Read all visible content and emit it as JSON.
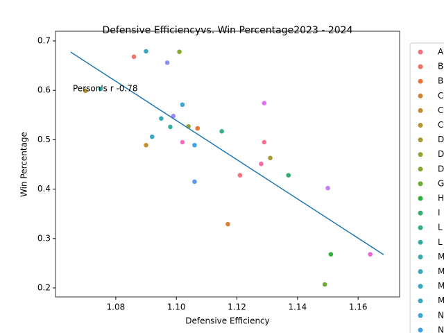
{
  "chart_data": {
    "type": "scatter",
    "title": "Defensive Efficiencyvs. Win Percentage2023 - 2024",
    "x_label": "Defensive Efficiency",
    "y_label": "Win Percentage",
    "annotation": "Person's r -0.78",
    "xlim": [
      1.0601,
      1.1737
    ],
    "ylim": [
      0.1817,
      0.7197
    ],
    "xticks": [
      1.08,
      {
        "value": 1.1,
        "label": "1.10"
      },
      1.12,
      1.14,
      1.16
    ],
    "yticks": [
      0.2,
      0.3,
      0.4,
      0.5,
      0.6,
      0.7
    ],
    "grid": false,
    "legend": "outside-right",
    "trend": {
      "color": "#1f77b4",
      "x": [
        1.0651,
        1.1684
      ],
      "values": [
        0.6775,
        0.2674
      ]
    },
    "series": [
      {
        "name": "A",
        "color": "#f56f7c",
        "x": [
          1.121
        ],
        "values": [
          0.428
        ]
      },
      {
        "name": "B",
        "color": "#f37167",
        "x": [
          1.086
        ],
        "values": [
          0.668
        ]
      },
      {
        "name": "B",
        "color": "#ee7336",
        "x": [
          1.107
        ],
        "values": [
          0.523
        ]
      },
      {
        "name": "C",
        "color": "#d58432",
        "x": [
          1.117
        ],
        "values": [
          0.329
        ]
      },
      {
        "name": "C",
        "color": "#c48f31",
        "x": [
          1.09
        ],
        "values": [
          0.489
        ]
      },
      {
        "name": "C",
        "color": "#b49631",
        "x": [
          1.07
        ],
        "values": [
          0.599
        ]
      },
      {
        "name": "D",
        "color": "#a69c31",
        "x": [
          1.131
        ],
        "values": [
          0.463
        ]
      },
      {
        "name": "D",
        "color": "#97a231",
        "x": [
          1.104
        ],
        "values": [
          0.527
        ]
      },
      {
        "name": "D",
        "color": "#86a731",
        "x": [
          1.101
        ],
        "values": [
          0.678
        ]
      },
      {
        "name": "G",
        "color": "#6bad31",
        "x": [
          1.149
        ],
        "values": [
          0.207
        ]
      },
      {
        "name": "H",
        "color": "#32b13a",
        "x": [
          1.151
        ],
        "values": [
          0.268
        ]
      },
      {
        "name": "I",
        "color": "#33b06f",
        "x": [
          1.137
        ],
        "values": [
          0.428
        ]
      },
      {
        "name": "L",
        "color": "#34ae8d",
        "x": [
          1.115
        ],
        "values": [
          0.517
        ]
      },
      {
        "name": "L",
        "color": "#35aca0",
        "x": [
          1.098
        ],
        "values": [
          0.526
        ]
      },
      {
        "name": "M",
        "color": "#36abab",
        "x": [
          1.075
        ],
        "values": [
          0.603
        ]
      },
      {
        "name": "M",
        "color": "#36aab4",
        "x": [
          1.095
        ],
        "values": [
          0.543
        ]
      },
      {
        "name": "M",
        "color": "#37a9be",
        "x": [
          1.09
        ],
        "values": [
          0.679
        ]
      },
      {
        "name": "M",
        "color": "#38a7c8",
        "x": [
          1.092
        ],
        "values": [
          0.506
        ]
      },
      {
        "name": "N",
        "color": "#3aa5d6",
        "x": [
          1.102
        ],
        "values": [
          0.571
        ]
      },
      {
        "name": "N",
        "color": "#3da2ea",
        "x": [
          1.106
        ],
        "values": [
          0.489
        ]
      },
      {
        "name": null,
        "color": "#5b98f4",
        "x": [
          1.106
        ],
        "values": [
          0.415
        ]
      },
      {
        "name": null,
        "color": "#8a8ff4",
        "x": [
          1.097
        ],
        "values": [
          0.656
        ]
      },
      {
        "name": null,
        "color": "#a48bf4",
        "x": [
          1.099
        ],
        "values": [
          0.548
        ]
      },
      {
        "name": null,
        "color": "#c27ff4",
        "x": [
          1.15
        ],
        "values": [
          0.402
        ]
      },
      {
        "name": null,
        "color": "#df6ff4",
        "x": [
          1.129
        ],
        "values": [
          0.574
        ]
      },
      {
        "name": null,
        "color": "#f064dc",
        "x": [
          1.164
        ],
        "values": [
          0.268
        ]
      },
      {
        "name": null,
        "color": "#f46bc2",
        "x": [
          1.102
        ],
        "values": [
          0.495
        ]
      },
      {
        "name": null,
        "color": "#f56ca8",
        "x": [
          1.128
        ],
        "values": [
          0.451
        ]
      },
      {
        "name": null,
        "color": "#f66e92",
        "x": [
          1.129
        ],
        "values": [
          0.495
        ]
      }
    ]
  }
}
